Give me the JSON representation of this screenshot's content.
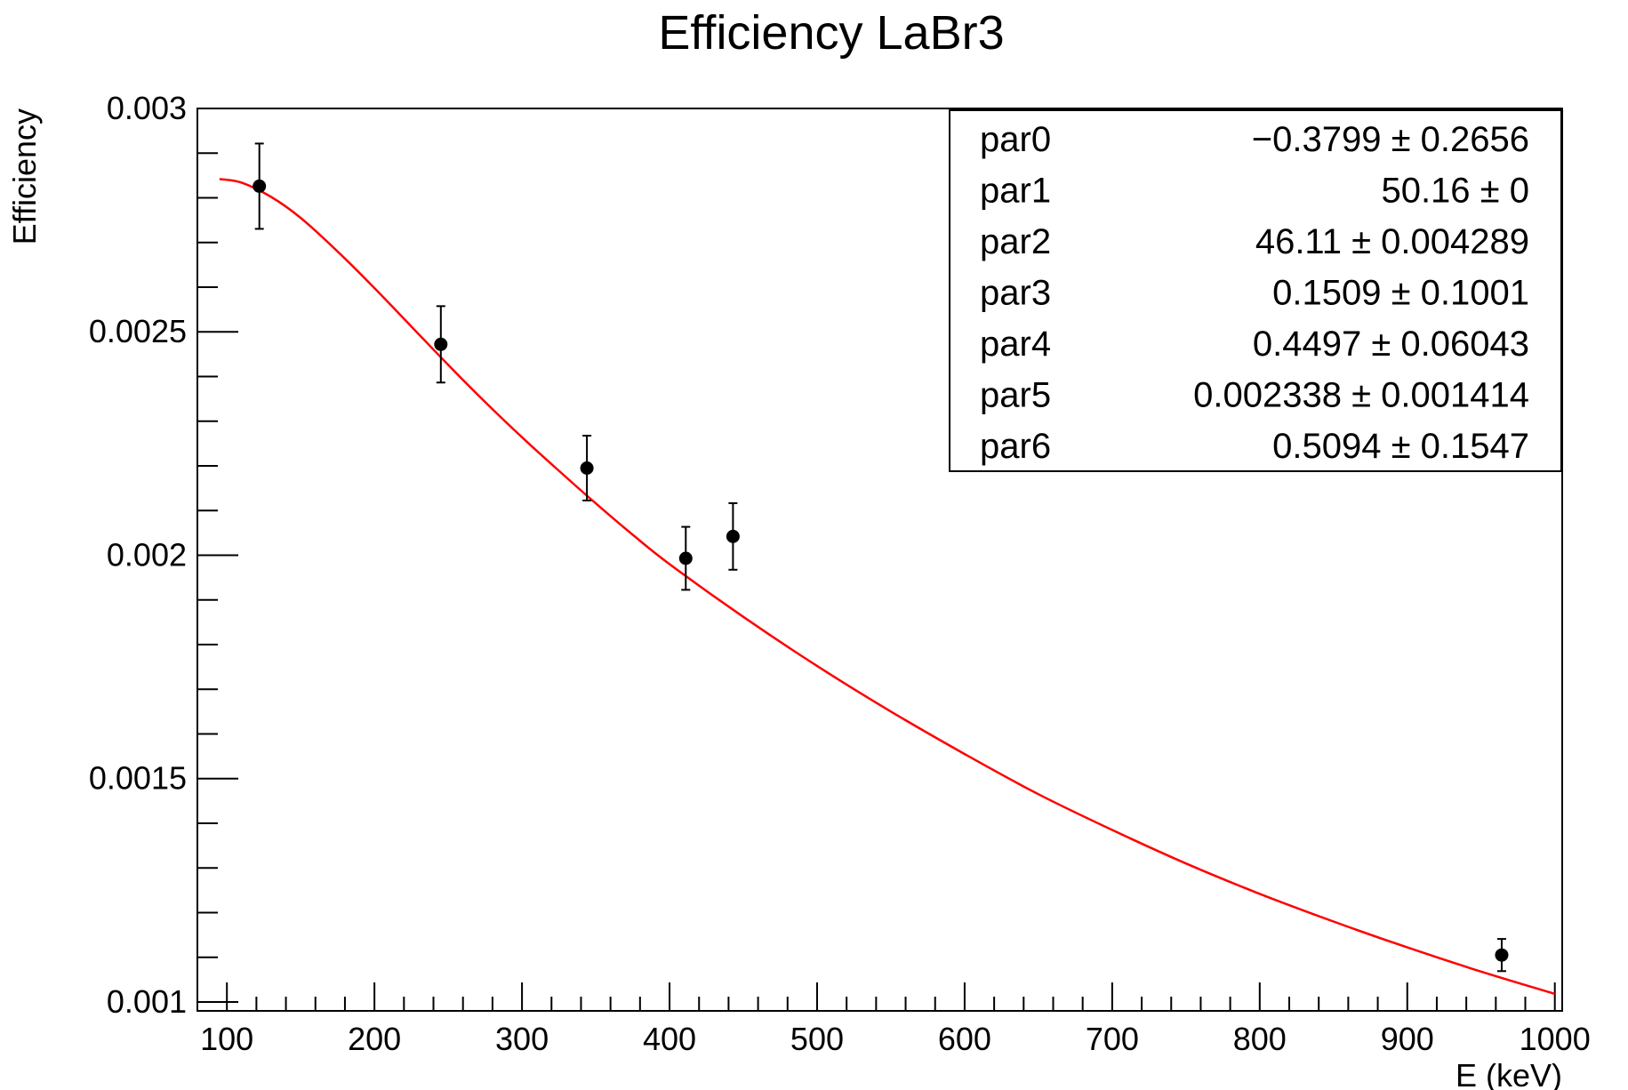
{
  "chart_data": {
    "type": "scatter",
    "title": "Efficiency LaBr3",
    "xlabel": "E (keV)",
    "ylabel": "Efficiency",
    "xlim": [
      80,
      1005
    ],
    "ylim": [
      0.00098,
      0.003
    ],
    "x_ticks": [
      100,
      200,
      300,
      400,
      500,
      600,
      700,
      800,
      900,
      1000
    ],
    "x_tick_labels": [
      "100",
      "200",
      "300",
      "400",
      "500",
      "600",
      "700",
      "800",
      "900",
      "1000"
    ],
    "y_ticks": [
      0.001,
      0.0015,
      0.002,
      0.0025,
      0.003
    ],
    "y_tick_labels": [
      "0.001",
      "0.0015",
      "0.002",
      "0.0025",
      "0.003"
    ],
    "grid": false,
    "legend": "top-right",
    "colors": {
      "points": "#000000",
      "fit": "#ff0000",
      "frame": "#000000"
    },
    "series": [
      {
        "kind": "points-with-error-bars",
        "x": [
          122,
          245,
          344,
          411,
          443,
          964
        ],
        "y": [
          0.002826,
          0.002472,
          0.002195,
          0.001993,
          0.002042,
          0.001105
        ],
        "yerr": [
          9.55e-05,
          8.55e-05,
          7.25e-05,
          7.05e-05,
          7.45e-05,
          3.6e-05
        ]
      },
      {
        "kind": "fit-curve",
        "x": [
          95,
          110,
          130,
          150,
          175,
          200,
          225,
          250,
          275,
          300,
          325,
          350,
          375,
          400,
          450,
          500,
          550,
          600,
          650,
          700,
          750,
          800,
          850,
          900,
          950,
          1000
        ],
        "y": [
          0.002842,
          0.002834,
          0.002802,
          0.002755,
          0.00268,
          0.002598,
          0.002512,
          0.002426,
          0.002343,
          0.002264,
          0.002189,
          0.002116,
          0.002046,
          0.00198,
          0.001862,
          0.001752,
          0.00165,
          0.001555,
          0.001465,
          0.001385,
          0.00131,
          0.001242,
          0.00118,
          0.001122,
          0.001068,
          0.001018
        ]
      }
    ],
    "stats": [
      {
        "name": "par0",
        "value": "−0.3799",
        "pm": "±",
        "error": "0.2656"
      },
      {
        "name": "par1",
        "value": "50.16",
        "pm": "±",
        "error": "0"
      },
      {
        "name": "par2",
        "value": "46.11",
        "pm": "±",
        "error": "0.004289"
      },
      {
        "name": "par3",
        "value": "0.1509",
        "pm": "±",
        "error": "0.1001"
      },
      {
        "name": "par4",
        "value": "0.4497",
        "pm": "±",
        "error": "0.06043"
      },
      {
        "name": "par5",
        "value": "0.002338",
        "pm": "±",
        "error": "0.001414"
      },
      {
        "name": "par6",
        "value": "0.5094",
        "pm": "±",
        "error": "0.1547"
      }
    ]
  }
}
